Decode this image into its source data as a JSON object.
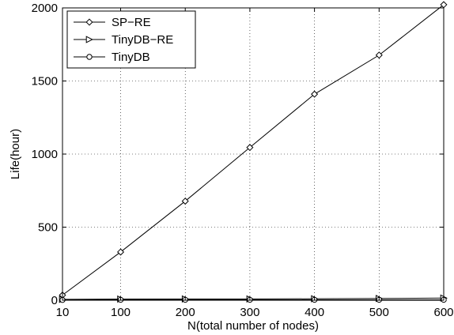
{
  "chart_data": {
    "type": "line",
    "xlabel": "N(total number of nodes)",
    "ylabel": "Life(hour)",
    "x": [
      10,
      100,
      200,
      300,
      400,
      500,
      600
    ],
    "xticks": [
      10,
      100,
      200,
      300,
      400,
      500,
      600
    ],
    "xlim": [
      10,
      600
    ],
    "yticks": [
      0,
      500,
      1000,
      1500,
      2000
    ],
    "ylim": [
      0,
      2000
    ],
    "grid": true,
    "legend_position": "top-left",
    "series": [
      {
        "name": "SP−RE",
        "marker": "diamond",
        "values": [
          35,
          330,
          678,
          1045,
          1410,
          1677,
          2022
        ]
      },
      {
        "name": "TinyDB−RE",
        "marker": "triangle-right",
        "values": [
          6,
          8,
          9,
          9,
          10,
          12,
          15
        ]
      },
      {
        "name": "TinyDB",
        "marker": "circle",
        "values": [
          2,
          3,
          3,
          3,
          3,
          3,
          3
        ]
      }
    ]
  }
}
